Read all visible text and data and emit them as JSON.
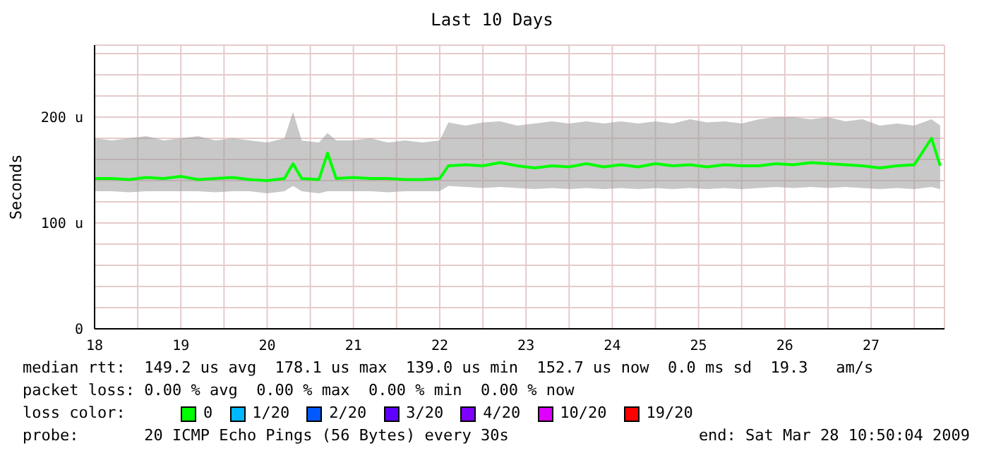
{
  "chart_data": {
    "type": "line",
    "title": "Last 10 Days",
    "ylabel": "Seconds",
    "legend_title": "loss color:",
    "legend": "bottom",
    "grid": true,
    "marker": "none",
    "xlim": [
      18,
      27.85
    ],
    "xticks": [
      18,
      {
        "value": 18.5,
        "label": null
      },
      19,
      {
        "value": 19.5,
        "label": null
      },
      20,
      {
        "value": 20.5,
        "label": null
      },
      21,
      {
        "value": 21.5,
        "label": null
      },
      22,
      {
        "value": 22.5,
        "label": null
      },
      23,
      {
        "value": 23.5,
        "label": null
      },
      24,
      {
        "value": 24.5,
        "label": null
      },
      25,
      {
        "value": 25.5,
        "label": null
      },
      26,
      {
        "value": 26.5,
        "label": null
      },
      27,
      {
        "value": 27.5,
        "label": null
      }
    ],
    "ylim": [
      0,
      268
    ],
    "yticks": [
      0,
      {
        "value": 20,
        "label": null
      },
      {
        "value": 40,
        "label": null
      },
      {
        "value": 60,
        "label": null
      },
      {
        "value": 80,
        "label": null
      },
      {
        "value": 100,
        "label": "100 u"
      },
      {
        "value": 120,
        "label": null
      },
      {
        "value": 140,
        "label": null
      },
      {
        "value": 160,
        "label": null
      },
      {
        "value": 180,
        "label": null
      },
      {
        "value": 200,
        "label": "200 u"
      },
      {
        "value": 220,
        "label": null
      },
      {
        "value": 240,
        "label": null
      },
      {
        "value": 260,
        "label": null
      }
    ],
    "series": [
      {
        "name": "0",
        "color": "#00ff00",
        "x": [
          18.0,
          18.2,
          18.4,
          18.6,
          18.8,
          19.0,
          19.2,
          19.4,
          19.6,
          19.8,
          20.0,
          20.2,
          20.3,
          20.4,
          20.6,
          20.7,
          20.8,
          21.0,
          21.2,
          21.4,
          21.6,
          21.8,
          22.0,
          22.1,
          22.3,
          22.5,
          22.7,
          22.9,
          23.1,
          23.3,
          23.5,
          23.7,
          23.9,
          24.1,
          24.3,
          24.5,
          24.7,
          24.9,
          25.1,
          25.3,
          25.5,
          25.7,
          25.9,
          26.1,
          26.3,
          26.5,
          26.7,
          26.9,
          27.1,
          27.3,
          27.5,
          27.7,
          27.8
        ],
        "values": [
          142,
          142,
          141,
          143,
          142,
          144,
          141,
          142,
          143,
          141,
          140,
          142,
          156,
          142,
          141,
          166,
          142,
          143,
          142,
          142,
          141,
          141,
          142,
          154,
          155,
          154,
          157,
          154,
          152,
          154,
          153,
          156,
          153,
          155,
          153,
          156,
          154,
          155,
          153,
          155,
          154,
          154,
          156,
          155,
          157,
          156,
          155,
          154,
          152,
          154,
          155,
          180,
          154
        ],
        "lower": [
          130,
          130,
          129,
          130,
          130,
          130,
          130,
          129,
          130,
          130,
          128,
          130,
          135,
          130,
          128,
          130,
          130,
          130,
          130,
          129,
          130,
          130,
          130,
          135,
          134,
          133,
          134,
          133,
          132,
          133,
          132,
          133,
          132,
          133,
          132,
          133,
          132,
          133,
          132,
          133,
          132,
          133,
          134,
          133,
          134,
          133,
          134,
          133,
          132,
          133,
          132,
          134,
          132
        ],
        "upper": [
          180,
          178,
          180,
          182,
          178,
          180,
          182,
          178,
          180,
          178,
          176,
          180,
          205,
          178,
          176,
          185,
          178,
          178,
          180,
          176,
          178,
          176,
          178,
          195,
          192,
          195,
          196,
          192,
          194,
          196,
          194,
          196,
          194,
          196,
          194,
          196,
          194,
          198,
          195,
          196,
          194,
          198,
          200,
          200,
          198,
          200,
          196,
          198,
          192,
          194,
          192,
          198,
          192
        ]
      },
      {
        "name": "1/20",
        "color": "#00b8ff"
      },
      {
        "name": "2/20",
        "color": "#0059ff"
      },
      {
        "name": "3/20",
        "color": "#5e00ff"
      },
      {
        "name": "4/20",
        "color": "#7e00ff"
      },
      {
        "name": "10/20",
        "color": "#dd00ff"
      },
      {
        "name": "19/20",
        "color": "#ff0000"
      }
    ],
    "annotations": [
      "median rtt:  149.2 us avg  178.1 us max  139.0 us min  152.7 us now  0.0 ms sd  19.3   am/s",
      "packet loss: 0.00 % avg  0.00 % max  0.00 % min  0.00 % now",
      "probe:       20 ICMP Echo Pings (56 Bytes) every 30s",
      "end: Sat Mar 28 10:50:04 2009"
    ]
  }
}
